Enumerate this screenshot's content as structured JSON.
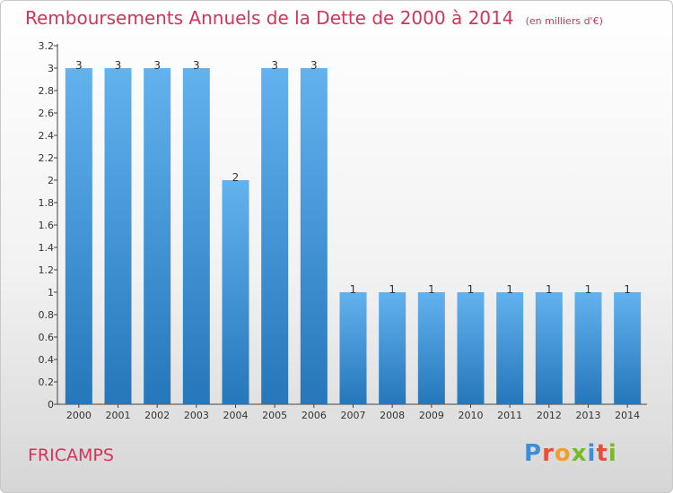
{
  "header": {
    "title": "Remboursements Annuels de la Dette de 2000 à 2014",
    "subtitle": "(en milliers d'€)"
  },
  "footer": {
    "location": "FRICAMPS",
    "brand": "Proxiti"
  },
  "colors": {
    "title": "#d2345a",
    "bar_top": "#62b2ee",
    "bar_bottom": "#2577bb",
    "brand_letters": [
      "#3c8ed8",
      "#e94e3a",
      "#f0a02a",
      "#79b92c",
      "#3c8ed8",
      "#e94e3a",
      "#79b92c"
    ]
  },
  "chart_data": {
    "type": "bar",
    "categories": [
      "2000",
      "2001",
      "2002",
      "2003",
      "2004",
      "2005",
      "2006",
      "2007",
      "2008",
      "2009",
      "2010",
      "2011",
      "2012",
      "2013",
      "2014"
    ],
    "values": [
      3,
      3,
      3,
      3,
      2,
      3,
      3,
      1,
      1,
      1,
      1,
      1,
      1,
      1,
      1
    ],
    "data_labels": [
      "3",
      "3",
      "3",
      "3",
      "2",
      "3",
      "3",
      "1",
      "1",
      "1",
      "1",
      "1",
      "1",
      "1",
      "1"
    ],
    "ylim": [
      0,
      3.2
    ],
    "yticks": [
      0,
      0.2,
      0.4,
      0.6,
      0.8,
      1,
      1.2,
      1.4,
      1.6,
      1.8,
      2,
      2.2,
      2.4,
      2.6,
      2.8,
      3,
      3.2
    ],
    "ytick_labels": [
      "0",
      "0.2",
      "0.4",
      "0.6",
      "0.8",
      "1",
      "1.2",
      "1.4",
      "1.6",
      "1.8",
      "2",
      "2.2",
      "2.4",
      "2.6",
      "2.8",
      "3",
      "3.2"
    ],
    "grid": false,
    "legend": "none"
  }
}
